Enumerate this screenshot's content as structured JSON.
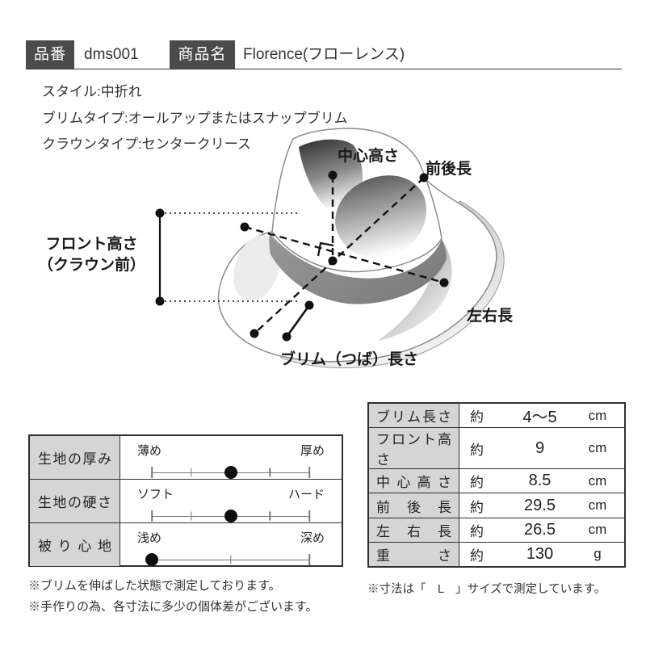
{
  "header": {
    "item_label": "品番",
    "item_value": "dms001",
    "name_label": "商品名",
    "name_value": "Florence(フローレンス)"
  },
  "specs": {
    "lines": [
      "スタイル:中折れ",
      "ブリムタイプ:オールアップまたはスナップブリム",
      "クラウンタイプ:センタークリース"
    ]
  },
  "diagram": {
    "center_height": "中心高さ",
    "front_back_length": "前後長",
    "front_height_l1": "フロント高さ",
    "front_height_l2": "（クラウン前）",
    "left_right_length": "左右長",
    "brim_length": "ブリム（つば）長さ"
  },
  "attributes": {
    "rows": [
      {
        "label": "生地の厚み",
        "min": "薄め",
        "max": "厚め",
        "value_percent": 50,
        "ticks": [
          25,
          50,
          75
        ]
      },
      {
        "label": "生地の硬さ",
        "min": "ソフト",
        "max": "ハード",
        "value_percent": 50,
        "ticks": [
          25,
          50,
          75
        ]
      },
      {
        "label": "被り心地",
        "min": "浅め",
        "max": "深め",
        "value_percent": 0,
        "ticks": [
          50
        ]
      }
    ]
  },
  "measurements": {
    "rows": [
      {
        "label": "ブリム長さ",
        "prefix": "約",
        "value": "4～5",
        "unit": "cm"
      },
      {
        "label": "フロント高さ",
        "prefix": "約",
        "value": "9",
        "unit": "cm"
      },
      {
        "label": "中心高さ",
        "prefix": "約",
        "value": "8.5",
        "unit": "cm"
      },
      {
        "label": "前後長",
        "prefix": "約",
        "value": "29.5",
        "unit": "cm"
      },
      {
        "label": "左右長",
        "prefix": "約",
        "value": "26.5",
        "unit": "cm"
      },
      {
        "label": "重さ",
        "prefix": "約",
        "value": "130",
        "unit": "g"
      }
    ]
  },
  "footnotes": {
    "left": [
      "※ブリムを伸ばした状態で測定しております。",
      "※手作りの為、各寸法に多少の個体差がございます。"
    ],
    "right": "※寸法は「　L　」サイズで測定しています。"
  },
  "colors": {
    "header_box": "#4b4b4b",
    "cell_gray": "#d5d5d5",
    "band_gray": "#8a8a8a",
    "line_black": "#111111"
  }
}
